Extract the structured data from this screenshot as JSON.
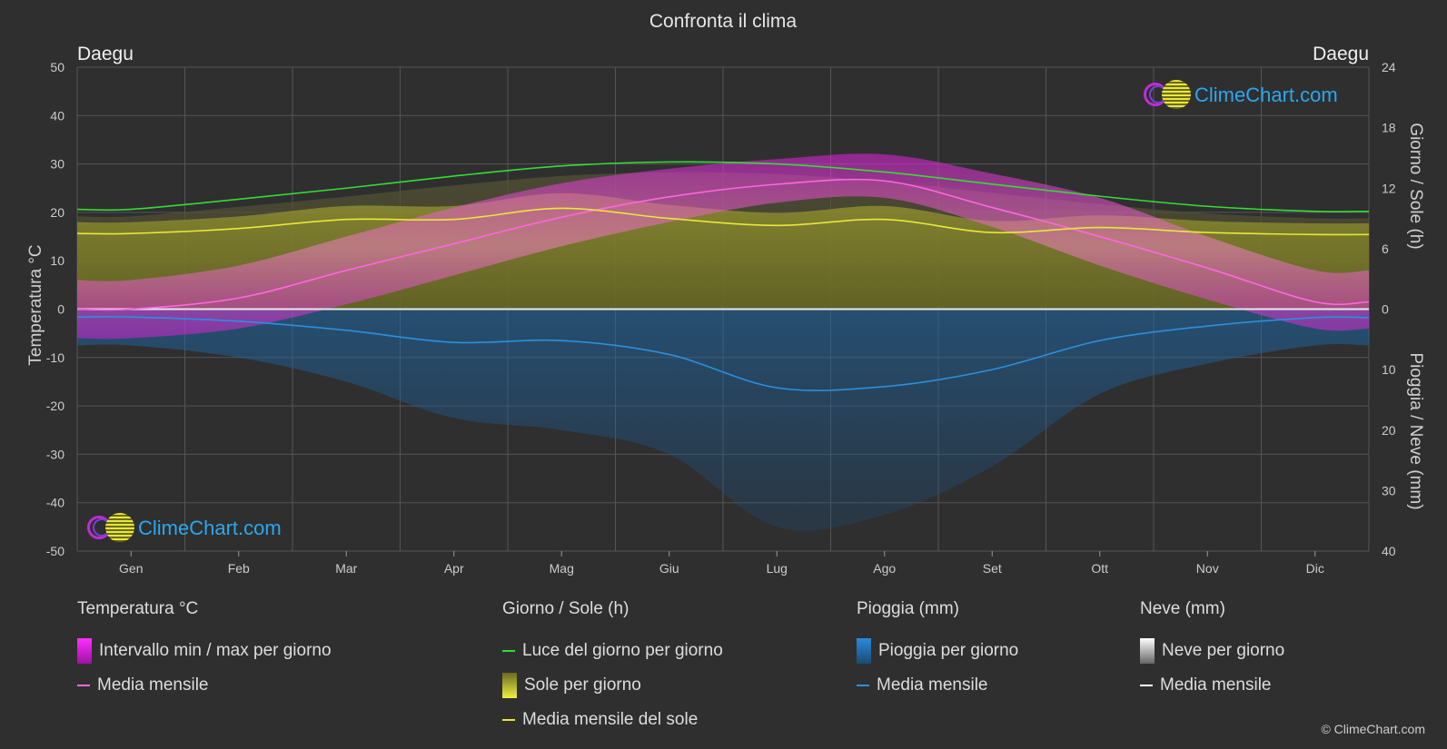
{
  "title": "Confronta il clima",
  "city_left": "Daegu",
  "city_right": "Daegu",
  "logo_text": "ClimeChart.com",
  "copyright": "© ClimeChart.com",
  "chart_data": {
    "type": "line",
    "title": "Confronta il clima",
    "categories": [
      "Gen",
      "Feb",
      "Mar",
      "Apr",
      "Mag",
      "Giu",
      "Lug",
      "Ago",
      "Set",
      "Ott",
      "Nov",
      "Dic"
    ],
    "axes": {
      "left": {
        "label": "Temperatura °C",
        "ylim": [
          -50,
          50
        ],
        "ticks": [
          50,
          40,
          30,
          20,
          10,
          0,
          -10,
          -20,
          -30,
          -40,
          -50
        ]
      },
      "right_top": {
        "label": "Giorno / Sole (h)",
        "ylim": [
          0,
          24
        ],
        "ticks": [
          24,
          18,
          12,
          6,
          0
        ]
      },
      "right_bottom": {
        "label": "Pioggia / Neve (mm)",
        "ylim": [
          0,
          40
        ],
        "ticks": [
          10,
          20,
          30,
          40
        ]
      }
    },
    "series": [
      {
        "name": "Media mensile",
        "group": "Temperatura °C",
        "color": "#ff66e0",
        "values": [
          0.0,
          2.3,
          8.0,
          13.5,
          19.0,
          23.2,
          25.8,
          26.5,
          21.0,
          15.0,
          8.5,
          1.5
        ]
      },
      {
        "name": "Luce del giorno per giorno",
        "group": "Giorno / Sole (h)",
        "color": "#33dd33",
        "values": [
          9.9,
          10.9,
          12.0,
          13.2,
          14.2,
          14.6,
          14.4,
          13.6,
          12.4,
          11.2,
          10.2,
          9.7
        ]
      },
      {
        "name": "Media mensile del sole",
        "group": "Giorno / Sole (h)",
        "color": "#e8e83a",
        "values": [
          7.5,
          8.0,
          8.9,
          8.9,
          10.0,
          9.0,
          8.3,
          8.9,
          7.6,
          8.1,
          7.6,
          7.4
        ]
      },
      {
        "name": "Media mensile",
        "group": "Pioggia (mm)",
        "color": "#2a90e0",
        "values": [
          1.3,
          2.0,
          3.5,
          5.5,
          5.2,
          7.5,
          13.0,
          12.8,
          10.0,
          5.2,
          2.8,
          1.4
        ]
      }
    ],
    "temp_range": {
      "name": "Intervallo min / max per giorno",
      "min": [
        -6,
        -4,
        1,
        7,
        13,
        18,
        22,
        23,
        17,
        9,
        2,
        -4
      ],
      "max": [
        6,
        9,
        15,
        21,
        26,
        29,
        31,
        32,
        28,
        23,
        15,
        8
      ]
    },
    "rain_daily_peak": [
      6,
      8,
      12,
      18,
      20,
      24,
      36,
      34,
      26,
      14,
      9,
      6
    ],
    "grid": true
  },
  "legend": {
    "groups": [
      {
        "title": "Temperatura °C",
        "items": [
          {
            "label": "Intervallo min / max per giorno",
            "kind": "box",
            "color": "#e020e0"
          },
          {
            "label": "Media mensile",
            "kind": "line",
            "color": "#ff66e0"
          }
        ]
      },
      {
        "title": "Giorno / Sole (h)",
        "items": [
          {
            "label": "Luce del giorno per giorno",
            "kind": "line",
            "color": "#33dd33"
          },
          {
            "label": "Sole per giorno",
            "kind": "box",
            "color": "#d8d830"
          },
          {
            "label": "Media mensile del sole",
            "kind": "line",
            "color": "#e8e83a"
          }
        ]
      },
      {
        "title": "Pioggia (mm)",
        "items": [
          {
            "label": "Pioggia per giorno",
            "kind": "box",
            "color": "#2a8ae0"
          },
          {
            "label": "Media mensile",
            "kind": "line",
            "color": "#2a90e0"
          }
        ]
      },
      {
        "title": "Neve (mm)",
        "items": [
          {
            "label": "Neve per giorno",
            "kind": "box",
            "color": "#e0e0e0"
          },
          {
            "label": "Media mensile",
            "kind": "line",
            "color": "#ffffff"
          }
        ]
      }
    ]
  }
}
